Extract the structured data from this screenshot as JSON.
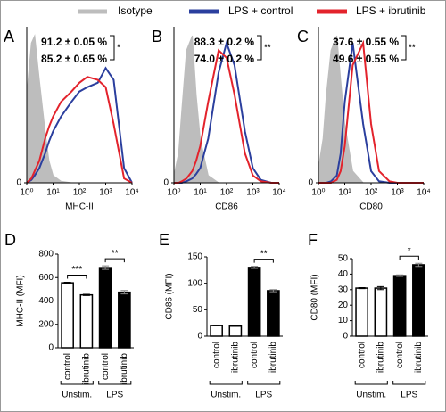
{
  "legend": [
    {
      "name": "Isotype",
      "color": "#bdbdbd"
    },
    {
      "name": "LPS + control",
      "color": "#2b3f9e"
    },
    {
      "name": "LPS + ibrutinib",
      "color": "#e3232c"
    }
  ],
  "chart_data": [
    {
      "type": "histogram-overlay",
      "panel": "A",
      "xlabel": "MHC-II",
      "xscale": "log",
      "xlim": [
        1,
        10000
      ],
      "xticks": [
        {
          "value": 1,
          "label": "10⁰"
        },
        {
          "value": 10,
          "label": "10¹"
        },
        {
          "value": 100,
          "label": "10²"
        },
        {
          "value": 1000,
          "label": "10³"
        },
        {
          "value": 10000,
          "label": "10⁴"
        }
      ],
      "ylim": [
        0,
        100
      ],
      "yticks": [
        0
      ],
      "x": [
        1,
        1.5,
        2,
        3,
        5,
        7,
        10,
        20,
        50,
        100,
        200,
        500,
        1000,
        2000,
        5000,
        10000
      ],
      "series": [
        {
          "values": [
            60,
            95,
            100,
            70,
            35,
            15,
            5,
            1,
            0,
            0,
            0,
            0,
            0,
            0,
            0,
            0
          ]
        },
        {
          "values": [
            0,
            2,
            5,
            10,
            20,
            28,
            35,
            45,
            55,
            62,
            65,
            68,
            78,
            70,
            10,
            0
          ]
        },
        {
          "values": [
            0,
            3,
            8,
            15,
            30,
            38,
            45,
            55,
            62,
            68,
            72,
            70,
            65,
            40,
            3,
            0
          ]
        }
      ],
      "stats": [
        "91.2 ± 0.05 %",
        "85.2 ± 0.65 %"
      ],
      "significance": "*"
    },
    {
      "type": "histogram-overlay",
      "panel": "B",
      "xlabel": "CD86",
      "xscale": "log",
      "xlim": [
        1,
        10000
      ],
      "xticks": [
        {
          "value": 1,
          "label": "10⁰"
        },
        {
          "value": 10,
          "label": "10¹"
        },
        {
          "value": 100,
          "label": "10²"
        },
        {
          "value": 1000,
          "label": "10³"
        },
        {
          "value": 10000,
          "label": "10⁴"
        }
      ],
      "ylim": [
        0,
        100
      ],
      "yticks": [
        0
      ],
      "x": [
        1,
        1.5,
        2,
        3,
        5,
        7,
        10,
        20,
        50,
        100,
        200,
        500,
        1000,
        2000,
        5000,
        10000
      ],
      "series": [
        {
          "values": [
            5,
            20,
            50,
            90,
            100,
            60,
            30,
            5,
            0,
            0,
            0,
            0,
            0,
            0,
            0,
            0
          ]
        },
        {
          "values": [
            0,
            0,
            0,
            1,
            3,
            6,
            10,
            30,
            75,
            95,
            80,
            35,
            10,
            2,
            0,
            0
          ]
        },
        {
          "values": [
            0,
            0,
            1,
            3,
            8,
            15,
            25,
            55,
            90,
            85,
            60,
            20,
            5,
            1,
            0,
            0
          ]
        }
      ],
      "stats": [
        "88.3 ± 0.2 %",
        "74.0 ± 0.2 %"
      ],
      "significance": "**"
    },
    {
      "type": "histogram-overlay",
      "panel": "C",
      "xlabel": "CD80",
      "xscale": "log",
      "xlim": [
        1,
        10000
      ],
      "xticks": [
        {
          "value": 1,
          "label": "10⁰"
        },
        {
          "value": 10,
          "label": "10¹"
        },
        {
          "value": 100,
          "label": "10²"
        },
        {
          "value": 1000,
          "label": "10³"
        },
        {
          "value": 10000,
          "label": "10⁴"
        }
      ],
      "ylim": [
        0,
        100
      ],
      "yticks": [
        0
      ],
      "x": [
        1,
        1.5,
        2,
        3,
        5,
        7,
        10,
        20,
        50,
        100,
        200,
        500,
        1000,
        2000,
        5000,
        10000
      ],
      "series": [
        {
          "values": [
            10,
            30,
            60,
            90,
            100,
            70,
            40,
            8,
            0,
            0,
            0,
            0,
            0,
            0,
            0,
            0
          ]
        },
        {
          "values": [
            0,
            0,
            0,
            1,
            5,
            20,
            55,
            95,
            40,
            8,
            1,
            0,
            0,
            0,
            0,
            0
          ]
        },
        {
          "values": [
            0,
            0,
            0,
            0,
            2,
            8,
            25,
            80,
            95,
            40,
            8,
            1,
            0,
            0,
            0,
            0
          ]
        }
      ],
      "stats": [
        "37.6 ± 0.55 %",
        "49.6 ± 0.55 %"
      ],
      "significance": "**"
    },
    {
      "type": "bar",
      "panel": "D",
      "ylabel": "MHC-II (MFI)",
      "ylim": [
        0,
        800
      ],
      "yticks": [
        0,
        200,
        400,
        600,
        800
      ],
      "categories": [
        "control",
        "ibrutinib",
        "control",
        "ibrutinib"
      ],
      "values": [
        555,
        452,
        685,
        475
      ],
      "errors": [
        5,
        5,
        15,
        15
      ],
      "colors": [
        "#ffffff",
        "#ffffff",
        "#000000",
        "#000000"
      ],
      "groups": [
        {
          "label": "Unstim.",
          "categories": [
            0,
            1
          ]
        },
        {
          "label": "LPS",
          "categories": [
            2,
            3
          ]
        }
      ],
      "annotations": [
        {
          "text": "***",
          "between": [
            0,
            1
          ]
        },
        {
          "text": "**",
          "between": [
            2,
            3
          ]
        }
      ]
    },
    {
      "type": "bar",
      "panel": "E",
      "ylabel": "CD86 (MFI)",
      "ylim": [
        0,
        150
      ],
      "yticks": [
        0,
        50,
        100,
        150
      ],
      "categories": [
        "control",
        "ibrutinib",
        "control",
        "ibrutinib"
      ],
      "values": [
        20,
        19,
        130,
        86
      ],
      "errors": [
        0.5,
        0.5,
        2,
        2
      ],
      "colors": [
        "#ffffff",
        "#ffffff",
        "#000000",
        "#000000"
      ],
      "groups": [
        {
          "label": "Unstim.",
          "categories": [
            0,
            1
          ]
        },
        {
          "label": "LPS",
          "categories": [
            2,
            3
          ]
        }
      ],
      "annotations": [
        {
          "text": "**",
          "between": [
            2,
            3
          ]
        }
      ]
    },
    {
      "type": "bar",
      "panel": "F",
      "ylabel": "CD80 (MFI)",
      "ylim": [
        0,
        50
      ],
      "yticks": [
        0,
        10,
        20,
        30,
        40,
        50
      ],
      "categories": [
        "control",
        "ibrutinib",
        "control",
        "ibrutinib"
      ],
      "values": [
        31,
        31,
        39,
        46
      ],
      "errors": [
        0.3,
        1,
        0.5,
        1
      ],
      "colors": [
        "#ffffff",
        "#ffffff",
        "#000000",
        "#000000"
      ],
      "groups": [
        {
          "label": "Unstim.",
          "categories": [
            0,
            1
          ]
        },
        {
          "label": "LPS",
          "categories": [
            2,
            3
          ]
        }
      ],
      "annotations": [
        {
          "text": "*",
          "between": [
            2,
            3
          ]
        }
      ]
    }
  ]
}
